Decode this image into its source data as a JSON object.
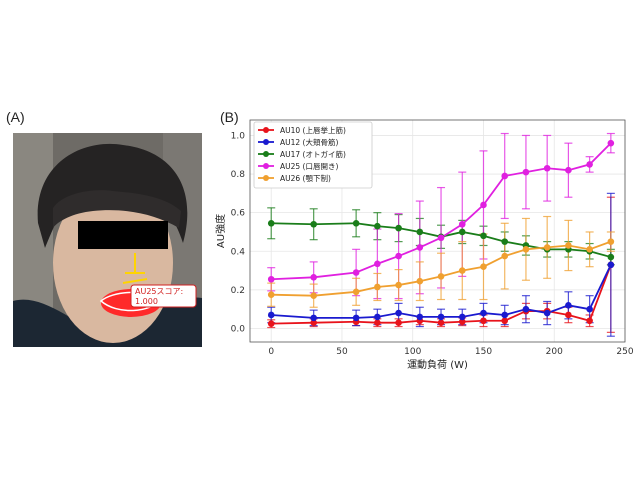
{
  "panels": {
    "a_label": "(A)",
    "b_label": "(B)"
  },
  "photo": {
    "score_label": "AU25スコア:",
    "score_value": "1.000",
    "colors": {
      "lips": "#ff2a2a",
      "landmarks": "#ffd400",
      "redaction": "#000000"
    }
  },
  "chart_data": {
    "type": "line",
    "xlabel": "運動負荷 (W)",
    "ylabel": "AU強度",
    "xlim": [
      -15,
      250
    ],
    "ylim": [
      -0.07,
      1.08
    ],
    "xticks": [
      0,
      50,
      100,
      150,
      200,
      250
    ],
    "yticks": [
      0.0,
      0.2,
      0.4,
      0.6,
      0.8,
      1.0
    ],
    "legend_position": "top-left",
    "grid": true,
    "x": [
      0,
      30,
      60,
      75,
      90,
      105,
      120,
      135,
      150,
      165,
      180,
      195,
      210,
      225,
      240
    ],
    "series": [
      {
        "name": "AU10 (上唇挙上筋)",
        "color": "#e8131b",
        "values": [
          0.025,
          0.03,
          0.035,
          0.03,
          0.03,
          0.04,
          0.03,
          0.035,
          0.04,
          0.04,
          0.09,
          0.09,
          0.07,
          0.04,
          0.33
        ],
        "errors": [
          0.02,
          0.02,
          0.02,
          0.02,
          0.02,
          0.02,
          0.02,
          0.02,
          0.03,
          0.03,
          0.04,
          0.04,
          0.04,
          0.03,
          0.35
        ]
      },
      {
        "name": "AU12 (大頬骨筋)",
        "color": "#1a1acf",
        "values": [
          0.07,
          0.055,
          0.055,
          0.06,
          0.08,
          0.06,
          0.06,
          0.06,
          0.08,
          0.07,
          0.1,
          0.08,
          0.12,
          0.1,
          0.33
        ],
        "errors": [
          0.04,
          0.04,
          0.04,
          0.04,
          0.05,
          0.05,
          0.04,
          0.04,
          0.05,
          0.05,
          0.07,
          0.06,
          0.07,
          0.07,
          0.37
        ]
      },
      {
        "name": "AU17 (オトガイ筋)",
        "color": "#1a7d1a",
        "values": [
          0.545,
          0.54,
          0.545,
          0.53,
          0.52,
          0.5,
          0.475,
          0.5,
          0.48,
          0.45,
          0.43,
          0.41,
          0.41,
          0.4,
          0.37
        ],
        "errors": [
          0.08,
          0.08,
          0.07,
          0.07,
          0.07,
          0.07,
          0.06,
          0.06,
          0.05,
          0.05,
          0.05,
          0.04,
          0.04,
          0.04,
          0.04
        ]
      },
      {
        "name": "AU25 (口唇開き)",
        "color": "#e020e0",
        "values": [
          0.255,
          0.265,
          0.29,
          0.335,
          0.375,
          0.42,
          0.47,
          0.54,
          0.64,
          0.79,
          0.81,
          0.83,
          0.82,
          0.85,
          0.96
        ],
        "errors": [
          0.06,
          0.08,
          0.12,
          0.18,
          0.22,
          0.24,
          0.26,
          0.27,
          0.28,
          0.22,
          0.19,
          0.17,
          0.14,
          0.04,
          0.05
        ]
      },
      {
        "name": "AU26 (顎下制)",
        "color": "#f0a030",
        "values": [
          0.175,
          0.17,
          0.19,
          0.215,
          0.225,
          0.245,
          0.27,
          0.3,
          0.32,
          0.375,
          0.41,
          0.42,
          0.43,
          0.41,
          0.45
        ],
        "errors": [
          0.06,
          0.06,
          0.07,
          0.07,
          0.08,
          0.1,
          0.12,
          0.15,
          0.17,
          0.17,
          0.16,
          0.16,
          0.13,
          0.09,
          0.05
        ]
      }
    ]
  }
}
